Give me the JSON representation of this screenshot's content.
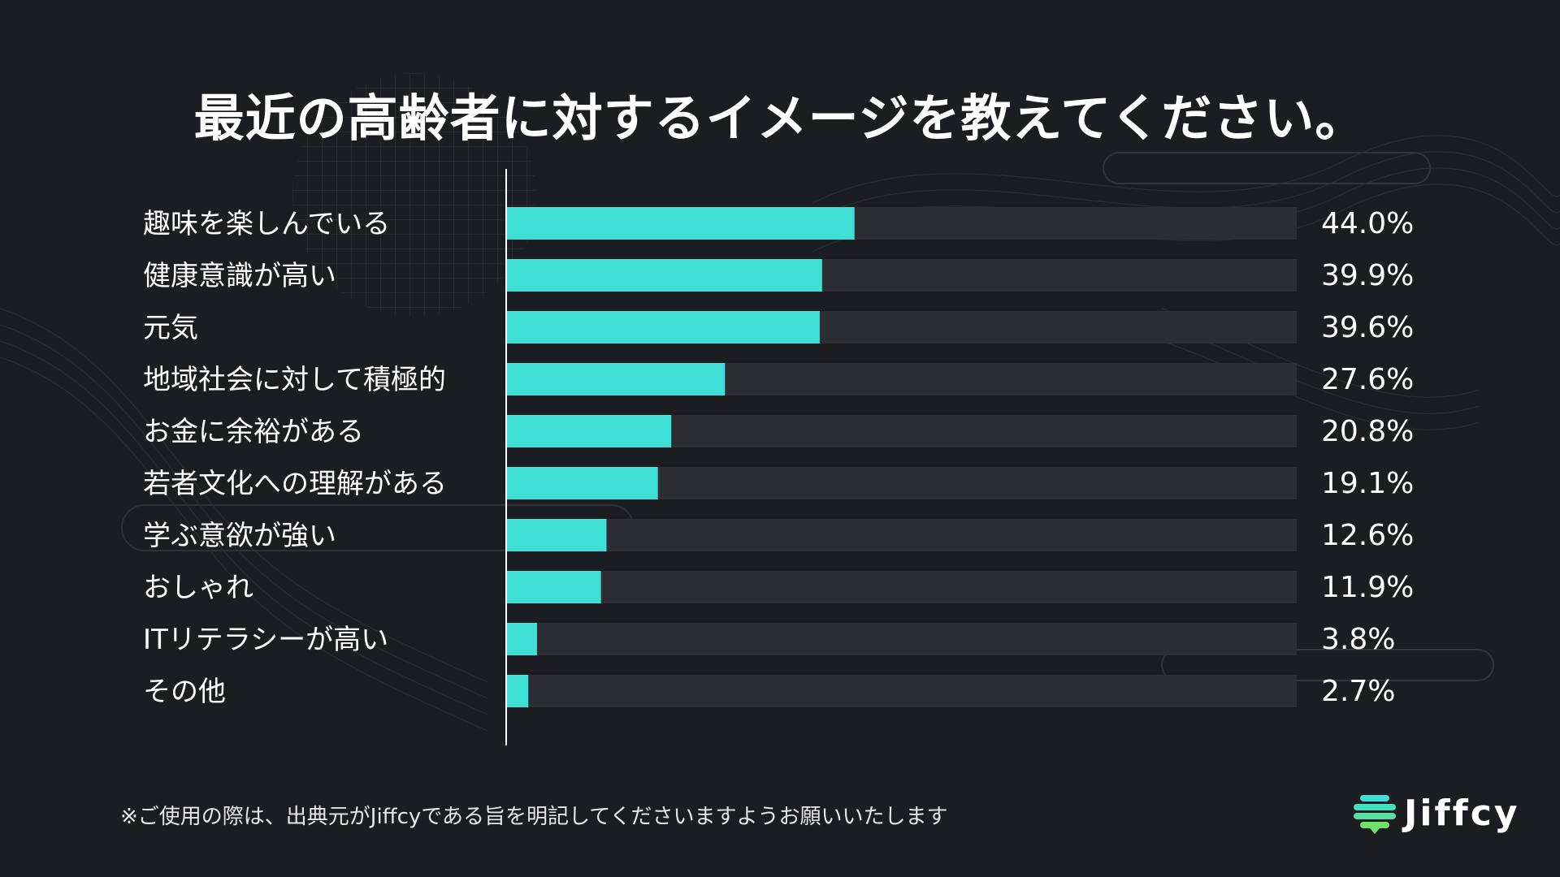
{
  "title": "最近の高齢者に対するイメージを教えてください。",
  "footer_note": "※ご使用の際は、出典元がJiffcyである旨を明記してくださいますようお願いいたします",
  "brand": {
    "name": "Jiffcy"
  },
  "colors": {
    "background": "#1c1d20",
    "bar": "#3ddfd6",
    "track": "#2c2e33",
    "axis": "#ffffff",
    "logo_top": "#3ddfd6",
    "logo_bottom": "#6fe06a"
  },
  "chart_data": {
    "type": "bar",
    "orientation": "horizontal",
    "title": "最近の高齢者に対するイメージを教えてください。",
    "categories": [
      "趣味を楽しんでいる",
      "健康意識が高い",
      "元気",
      "地域社会に対して積極的",
      "お金に余裕がある",
      "若者文化への理解がある",
      "学ぶ意欲が強い",
      "おしゃれ",
      "ITリテラシーが高い",
      "その他"
    ],
    "values": [
      44.0,
      39.9,
      39.6,
      27.6,
      20.8,
      19.1,
      12.6,
      11.9,
      3.8,
      2.7
    ],
    "value_labels": [
      "44.0%",
      "39.9%",
      "39.6%",
      "27.6%",
      "20.8%",
      "19.1%",
      "12.6%",
      "11.9%",
      "3.8%",
      "2.7%"
    ],
    "xlim": [
      0,
      100
    ],
    "unit": "%",
    "grid": false,
    "legend": "none"
  }
}
